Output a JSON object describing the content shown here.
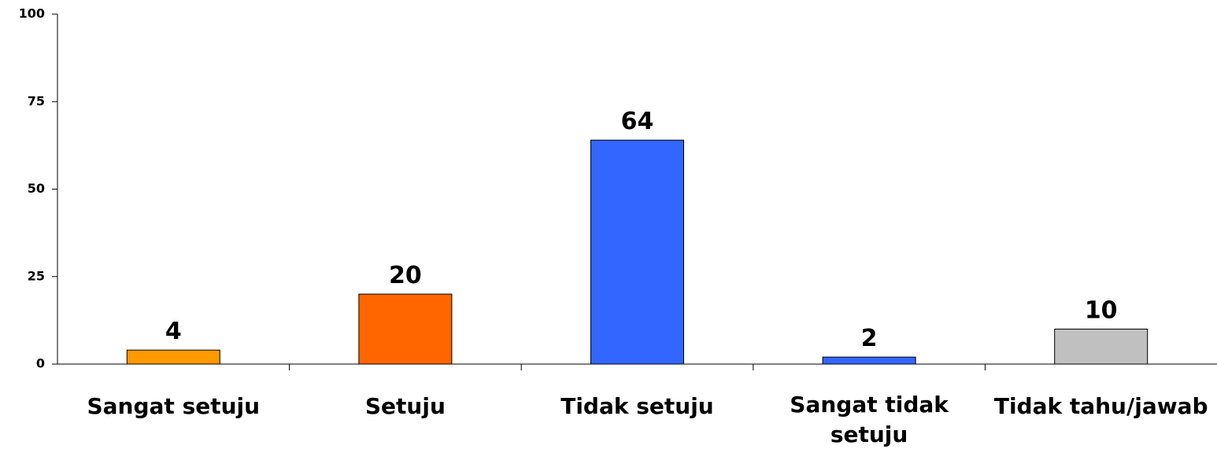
{
  "chart_data": {
    "type": "bar",
    "categories": [
      "Sangat setuju",
      "Setuju",
      "Tidak setuju",
      "Sangat tidak setuju",
      "Tidak tahu/jawab"
    ],
    "values": [
      4,
      20,
      64,
      2,
      10
    ],
    "colors": [
      "#ff9900",
      "#ff6600",
      "#3366ff",
      "#3366ff",
      "#c0c0c0"
    ],
    "ylim": [
      0,
      100
    ],
    "yticks": [
      0,
      25,
      50,
      75,
      100
    ],
    "grid": false
  }
}
